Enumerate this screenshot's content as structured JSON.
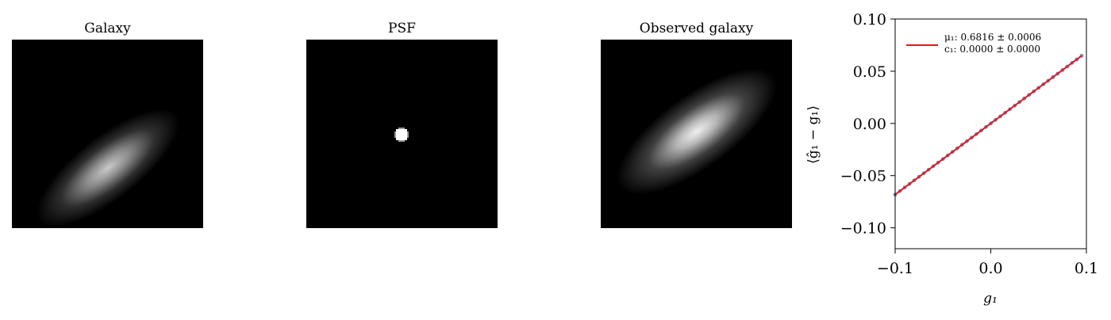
{
  "panels": [
    {
      "title": "Galaxy"
    },
    {
      "title": "PSF"
    },
    {
      "title": "Observed galaxy"
    }
  ],
  "chart_data": {
    "type": "scatter",
    "xlabel": "g₁",
    "ylabel": "⟨ĝ₁ − g₁⟩",
    "xlim": [
      -0.1,
      0.1
    ],
    "ylim": [
      -0.12,
      0.1
    ],
    "xticks": [
      -0.1,
      0.0,
      0.1
    ],
    "xtick_labels": [
      "−0.1",
      "0.0",
      "0.1"
    ],
    "yticks": [
      -0.1,
      -0.05,
      0.0,
      0.05,
      0.1
    ],
    "ytick_labels": [
      "−0.10",
      "−0.05",
      "0.00",
      "0.05",
      "0.10"
    ],
    "grid": false,
    "legend_position": "top-left",
    "legend": [
      {
        "label": "μ₁: 0.6816 ± 0.0006"
      },
      {
        "label": "c₁: 0.0000 ± 0.0000"
      }
    ],
    "fit": {
      "slope": 0.6816,
      "intercept": 0.0,
      "color": "#e8141a"
    },
    "point_color": "#6f8fbf",
    "points": [
      {
        "x": -0.1,
        "y": -0.0682
      },
      {
        "x": -0.095,
        "y": -0.0648
      },
      {
        "x": -0.09,
        "y": -0.0613
      },
      {
        "x": -0.085,
        "y": -0.058
      },
      {
        "x": -0.08,
        "y": -0.0545
      },
      {
        "x": -0.075,
        "y": -0.0511
      },
      {
        "x": -0.07,
        "y": -0.0477
      },
      {
        "x": -0.065,
        "y": -0.0443
      },
      {
        "x": -0.06,
        "y": -0.0409
      },
      {
        "x": -0.055,
        "y": -0.0375
      },
      {
        "x": -0.05,
        "y": -0.0341
      },
      {
        "x": -0.045,
        "y": -0.0307
      },
      {
        "x": -0.04,
        "y": -0.0273
      },
      {
        "x": -0.035,
        "y": -0.0239
      },
      {
        "x": -0.03,
        "y": -0.0204
      },
      {
        "x": -0.025,
        "y": -0.017
      },
      {
        "x": -0.02,
        "y": -0.0136
      },
      {
        "x": -0.015,
        "y": -0.0102
      },
      {
        "x": -0.01,
        "y": -0.0068
      },
      {
        "x": -0.005,
        "y": -0.0034
      },
      {
        "x": 0.0,
        "y": 0.0
      },
      {
        "x": 0.005,
        "y": 0.0034
      },
      {
        "x": 0.01,
        "y": 0.0068
      },
      {
        "x": 0.015,
        "y": 0.0102
      },
      {
        "x": 0.02,
        "y": 0.0136
      },
      {
        "x": 0.025,
        "y": 0.017
      },
      {
        "x": 0.03,
        "y": 0.0204
      },
      {
        "x": 0.035,
        "y": 0.0239
      },
      {
        "x": 0.04,
        "y": 0.0273
      },
      {
        "x": 0.045,
        "y": 0.0307
      },
      {
        "x": 0.05,
        "y": 0.0341
      },
      {
        "x": 0.055,
        "y": 0.0375
      },
      {
        "x": 0.06,
        "y": 0.0409
      },
      {
        "x": 0.065,
        "y": 0.0443
      },
      {
        "x": 0.07,
        "y": 0.0477
      },
      {
        "x": 0.075,
        "y": 0.0511
      },
      {
        "x": 0.08,
        "y": 0.0545
      },
      {
        "x": 0.085,
        "y": 0.058
      },
      {
        "x": 0.09,
        "y": 0.0613
      },
      {
        "x": 0.095,
        "y": 0.0648
      }
    ]
  }
}
